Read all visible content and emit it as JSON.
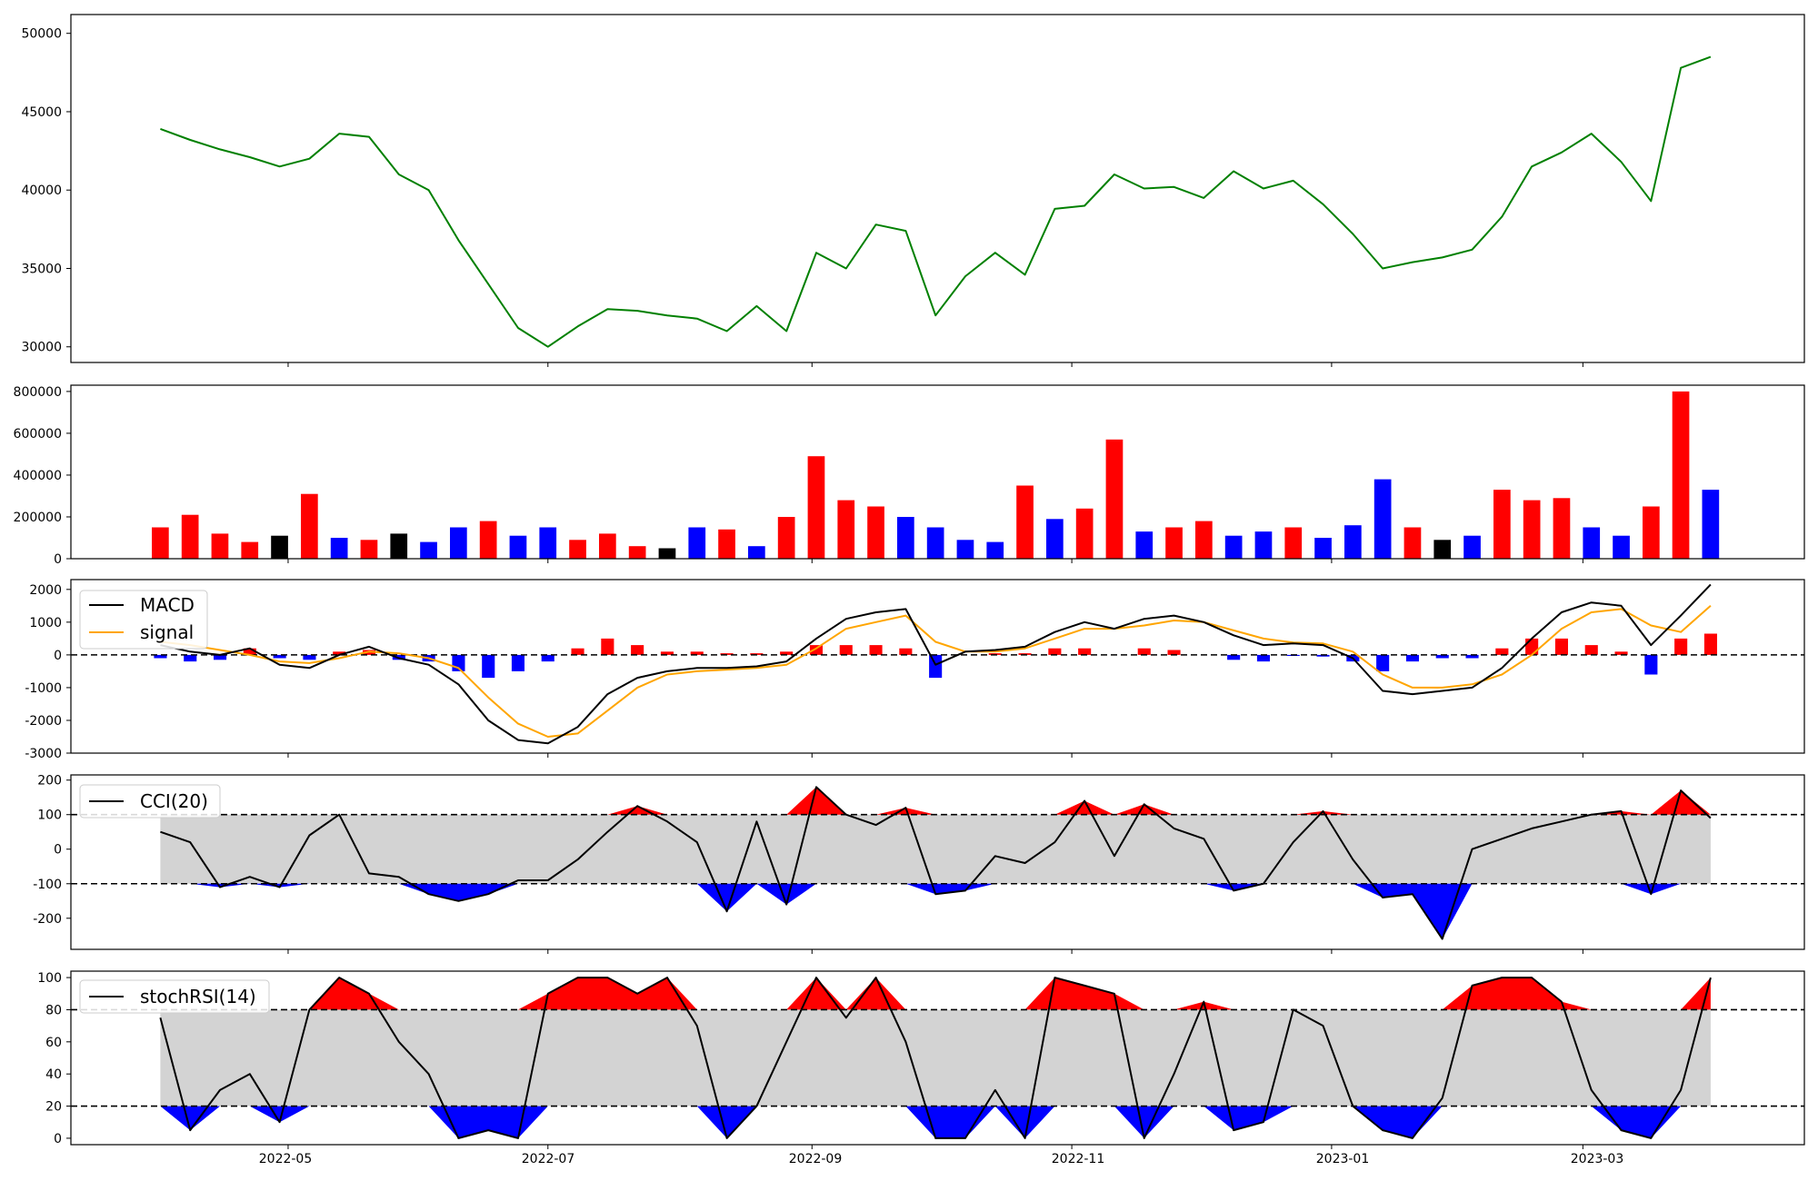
{
  "colors": {
    "price": "#008000",
    "up": "#ff0000",
    "down": "#0000ff",
    "neutral": "#000000",
    "macd": "#000000",
    "signal": "#ffa500",
    "band": "#d3d3d3",
    "frame": "#000000"
  },
  "chart_data": [
    {
      "type": "line",
      "panel": "price",
      "x": [
        "2022-04-01",
        "2022-04-08",
        "2022-04-15",
        "2022-04-22",
        "2022-04-29",
        "2022-05-06",
        "2022-05-13",
        "2022-05-20",
        "2022-05-27",
        "2022-06-03",
        "2022-06-10",
        "2022-06-17",
        "2022-06-24",
        "2022-07-01",
        "2022-07-08",
        "2022-07-15",
        "2022-07-22",
        "2022-07-29",
        "2022-08-05",
        "2022-08-12",
        "2022-08-19",
        "2022-08-26",
        "2022-09-02",
        "2022-09-09",
        "2022-09-16",
        "2022-09-23",
        "2022-09-30",
        "2022-10-07",
        "2022-10-14",
        "2022-10-21",
        "2022-10-28",
        "2022-11-04",
        "2022-11-11",
        "2022-11-18",
        "2022-11-25",
        "2022-12-02",
        "2022-12-09",
        "2022-12-16",
        "2022-12-23",
        "2022-12-30",
        "2023-01-06",
        "2023-01-13",
        "2023-01-20",
        "2023-01-27",
        "2023-02-03",
        "2023-02-10",
        "2023-02-17",
        "2023-02-24",
        "2023-03-03",
        "2023-03-10",
        "2023-03-17",
        "2023-03-24",
        "2023-03-31"
      ],
      "values": [
        43900,
        43200,
        42600,
        42100,
        41500,
        42000,
        43600,
        43400,
        41000,
        40000,
        36800,
        34000,
        31200,
        30000,
        31300,
        32400,
        32300,
        32000,
        31800,
        31000,
        32600,
        31000,
        36000,
        35000,
        37800,
        37400,
        32000,
        34500,
        36000,
        34600,
        38800,
        39000,
        41000,
        40100,
        40200,
        39500,
        41200,
        40100,
        40600,
        39100,
        37200,
        35000,
        35400,
        35700,
        36200,
        38300,
        41500,
        42400,
        43600,
        41800,
        39300,
        47800,
        48500
      ],
      "ylim": [
        29000,
        51200
      ],
      "yticks": [
        30000,
        35000,
        40000,
        45000,
        50000
      ]
    },
    {
      "type": "bar",
      "panel": "volume",
      "x": [
        "2022-04-01",
        "2022-04-08",
        "2022-04-15",
        "2022-04-22",
        "2022-04-29",
        "2022-05-06",
        "2022-05-13",
        "2022-05-20",
        "2022-05-27",
        "2022-06-03",
        "2022-06-10",
        "2022-06-17",
        "2022-06-24",
        "2022-07-01",
        "2022-07-08",
        "2022-07-15",
        "2022-07-22",
        "2022-07-29",
        "2022-08-05",
        "2022-08-12",
        "2022-08-19",
        "2022-08-26",
        "2022-09-02",
        "2022-09-09",
        "2022-09-16",
        "2022-09-23",
        "2022-09-30",
        "2022-10-07",
        "2022-10-14",
        "2022-10-21",
        "2022-10-28",
        "2022-11-04",
        "2022-11-11",
        "2022-11-18",
        "2022-11-25",
        "2022-12-02",
        "2022-12-09",
        "2022-12-16",
        "2022-12-23",
        "2022-12-30",
        "2023-01-06",
        "2023-01-13",
        "2023-01-20",
        "2023-01-27",
        "2023-02-03",
        "2023-02-10",
        "2023-02-17",
        "2023-02-24",
        "2023-03-03",
        "2023-03-10",
        "2023-03-17",
        "2023-03-24",
        "2023-03-31"
      ],
      "values": [
        150000,
        210000,
        120000,
        80000,
        110000,
        310000,
        100000,
        90000,
        120000,
        80000,
        150000,
        180000,
        110000,
        150000,
        90000,
        120000,
        60000,
        50000,
        150000,
        140000,
        60000,
        200000,
        490000,
        280000,
        250000,
        200000,
        150000,
        90000,
        80000,
        350000,
        190000,
        240000,
        570000,
        130000,
        150000,
        180000,
        110000,
        130000,
        150000,
        100000,
        160000,
        380000,
        150000,
        90000,
        110000,
        330000,
        280000,
        290000,
        150000,
        110000,
        250000,
        800000,
        330000
      ],
      "direction": [
        "up",
        "up",
        "up",
        "up",
        "neutral",
        "up",
        "down",
        "up",
        "neutral",
        "down",
        "down",
        "up",
        "down",
        "down",
        "up",
        "up",
        "up",
        "neutral",
        "down",
        "up",
        "down",
        "up",
        "up",
        "up",
        "up",
        "down",
        "down",
        "down",
        "down",
        "up",
        "down",
        "up",
        "up",
        "down",
        "up",
        "up",
        "down",
        "down",
        "up",
        "down",
        "down",
        "down",
        "up",
        "neutral",
        "down",
        "up",
        "up",
        "up",
        "down",
        "down",
        "up",
        "up",
        "down"
      ],
      "ylim": [
        0,
        830000
      ],
      "yticks": [
        0,
        200000,
        400000,
        600000,
        800000
      ]
    },
    {
      "type": "line",
      "panel": "macd",
      "x": [
        "2022-04-01",
        "2022-04-08",
        "2022-04-15",
        "2022-04-22",
        "2022-04-29",
        "2022-05-06",
        "2022-05-13",
        "2022-05-20",
        "2022-05-27",
        "2022-06-03",
        "2022-06-10",
        "2022-06-17",
        "2022-06-24",
        "2022-07-01",
        "2022-07-08",
        "2022-07-15",
        "2022-07-22",
        "2022-07-29",
        "2022-08-05",
        "2022-08-12",
        "2022-08-19",
        "2022-08-26",
        "2022-09-02",
        "2022-09-09",
        "2022-09-16",
        "2022-09-23",
        "2022-09-30",
        "2022-10-07",
        "2022-10-14",
        "2022-10-21",
        "2022-10-28",
        "2022-11-04",
        "2022-11-11",
        "2022-11-18",
        "2022-11-25",
        "2022-12-02",
        "2022-12-09",
        "2022-12-16",
        "2022-12-23",
        "2022-12-30",
        "2023-01-06",
        "2023-01-13",
        "2023-01-20",
        "2023-01-27",
        "2023-02-03",
        "2023-02-10",
        "2023-02-17",
        "2023-02-24",
        "2023-03-03",
        "2023-03-10",
        "2023-03-17",
        "2023-03-24",
        "2023-03-31"
      ],
      "series": [
        {
          "name": "MACD",
          "values": [
            300,
            100,
            0,
            200,
            -300,
            -400,
            0,
            250,
            -100,
            -300,
            -900,
            -2000,
            -2600,
            -2700,
            -2200,
            -1200,
            -700,
            -500,
            -400,
            -400,
            -350,
            -200,
            500,
            1100,
            1300,
            1400,
            -300,
            100,
            150,
            250,
            700,
            1000,
            800,
            1100,
            1200,
            1000,
            600,
            300,
            350,
            300,
            -100,
            -1100,
            -1200,
            -1100,
            -1000,
            -400,
            500,
            1300,
            1600,
            1500,
            300,
            1200,
            2150
          ]
        },
        {
          "name": "signal",
          "values": [
            400,
            300,
            150,
            0,
            -200,
            -250,
            -100,
            100,
            50,
            -100,
            -400,
            -1300,
            -2100,
            -2500,
            -2400,
            -1700,
            -1000,
            -600,
            -500,
            -450,
            -400,
            -300,
            200,
            800,
            1000,
            1200,
            400,
            100,
            100,
            200,
            500,
            800,
            800,
            900,
            1050,
            1000,
            750,
            500,
            380,
            350,
            100,
            -600,
            -1000,
            -1000,
            -900,
            -600,
            0,
            800,
            1300,
            1400,
            900,
            700,
            1500
          ]
        }
      ],
      "histogram": [
        -100,
        -200,
        -150,
        200,
        -100,
        -150,
        100,
        150,
        -150,
        -200,
        -500,
        -700,
        -500,
        -200,
        200,
        500,
        300,
        100,
        100,
        50,
        50,
        100,
        300,
        300,
        300,
        200,
        -700,
        0,
        50,
        50,
        200,
        200,
        0,
        200,
        150,
        0,
        -150,
        -200,
        -30,
        -50,
        -200,
        -500,
        -200,
        -100,
        -100,
        200,
        500,
        500,
        300,
        100,
        -600,
        500,
        650
      ],
      "ylim": [
        -3000,
        2300
      ],
      "yticks": [
        -3000,
        -2000,
        -1000,
        0,
        1000,
        2000
      ]
    },
    {
      "type": "line",
      "panel": "cci",
      "x": [
        "2022-04-01",
        "2022-04-08",
        "2022-04-15",
        "2022-04-22",
        "2022-04-29",
        "2022-05-06",
        "2022-05-13",
        "2022-05-20",
        "2022-05-27",
        "2022-06-03",
        "2022-06-10",
        "2022-06-17",
        "2022-06-24",
        "2022-07-01",
        "2022-07-08",
        "2022-07-15",
        "2022-07-22",
        "2022-07-29",
        "2022-08-05",
        "2022-08-12",
        "2022-08-19",
        "2022-08-26",
        "2022-09-02",
        "2022-09-09",
        "2022-09-16",
        "2022-09-23",
        "2022-09-30",
        "2022-10-07",
        "2022-10-14",
        "2022-10-21",
        "2022-10-28",
        "2022-11-04",
        "2022-11-11",
        "2022-11-18",
        "2022-11-25",
        "2022-12-02",
        "2022-12-09",
        "2022-12-16",
        "2022-12-23",
        "2022-12-30",
        "2023-01-06",
        "2023-01-13",
        "2023-01-20",
        "2023-01-27",
        "2023-02-03",
        "2023-02-10",
        "2023-02-17",
        "2023-02-24",
        "2023-03-03",
        "2023-03-10",
        "2023-03-17",
        "2023-03-24",
        "2023-03-31"
      ],
      "series": [
        {
          "name": "CCI(20)",
          "values": [
            50,
            20,
            -110,
            -80,
            -110,
            40,
            100,
            -70,
            -80,
            -130,
            -150,
            -130,
            -90,
            -90,
            -30,
            50,
            125,
            80,
            20,
            -180,
            80,
            -160,
            180,
            100,
            70,
            120,
            -130,
            -120,
            -20,
            -40,
            20,
            140,
            -20,
            130,
            60,
            30,
            -120,
            -100,
            20,
            110,
            -30,
            -140,
            -130,
            -260,
            0,
            30,
            60,
            80,
            100,
            110,
            -130,
            170,
            90
          ]
        }
      ],
      "bands": [
        -100,
        100
      ],
      "ylim": [
        -290,
        215
      ],
      "yticks": [
        -200,
        -100,
        0,
        100,
        200
      ]
    },
    {
      "type": "line",
      "panel": "stochrsi",
      "x": [
        "2022-04-01",
        "2022-04-08",
        "2022-04-15",
        "2022-04-22",
        "2022-04-29",
        "2022-05-06",
        "2022-05-13",
        "2022-05-20",
        "2022-05-27",
        "2022-06-03",
        "2022-06-10",
        "2022-06-17",
        "2022-06-24",
        "2022-07-01",
        "2022-07-08",
        "2022-07-15",
        "2022-07-22",
        "2022-07-29",
        "2022-08-05",
        "2022-08-12",
        "2022-08-19",
        "2022-08-26",
        "2022-09-02",
        "2022-09-09",
        "2022-09-16",
        "2022-09-23",
        "2022-09-30",
        "2022-10-07",
        "2022-10-14",
        "2022-10-21",
        "2022-10-28",
        "2022-11-04",
        "2022-11-11",
        "2022-11-18",
        "2022-11-25",
        "2022-12-02",
        "2022-12-09",
        "2022-12-16",
        "2022-12-23",
        "2022-12-30",
        "2023-01-06",
        "2023-01-13",
        "2023-01-20",
        "2023-01-27",
        "2023-02-03",
        "2023-02-10",
        "2023-02-17",
        "2023-02-24",
        "2023-03-03",
        "2023-03-10",
        "2023-03-17",
        "2023-03-24",
        "2023-03-31"
      ],
      "series": [
        {
          "name": "stochRSI(14)",
          "values": [
            75,
            5,
            30,
            40,
            10,
            80,
            100,
            90,
            60,
            40,
            0,
            5,
            0,
            90,
            100,
            100,
            90,
            100,
            70,
            0,
            20,
            60,
            100,
            75,
            100,
            60,
            0,
            0,
            30,
            0,
            100,
            95,
            90,
            0,
            40,
            85,
            5,
            10,
            80,
            70,
            20,
            5,
            0,
            25,
            95,
            100,
            100,
            85,
            30,
            5,
            0,
            30,
            100
          ]
        }
      ],
      "bands": [
        20,
        80
      ],
      "ylim": [
        -4,
        104
      ],
      "yticks": [
        0,
        20,
        40,
        60,
        80,
        100
      ]
    }
  ],
  "x_axis": {
    "start": "2022-03-11",
    "end": "2023-04-22",
    "tick_dates": [
      "2022-05-01",
      "2022-07-01",
      "2022-09-01",
      "2022-11-01",
      "2023-01-01",
      "2023-03-01"
    ],
    "tick_labels": [
      "2022-05",
      "2022-07",
      "2022-09",
      "2022-11",
      "2023-01",
      "2023-03"
    ]
  },
  "legends": {
    "macd": [
      "MACD",
      "signal"
    ],
    "cci": [
      "CCI(20)"
    ],
    "stochrsi": [
      "stochRSI(14)"
    ]
  }
}
